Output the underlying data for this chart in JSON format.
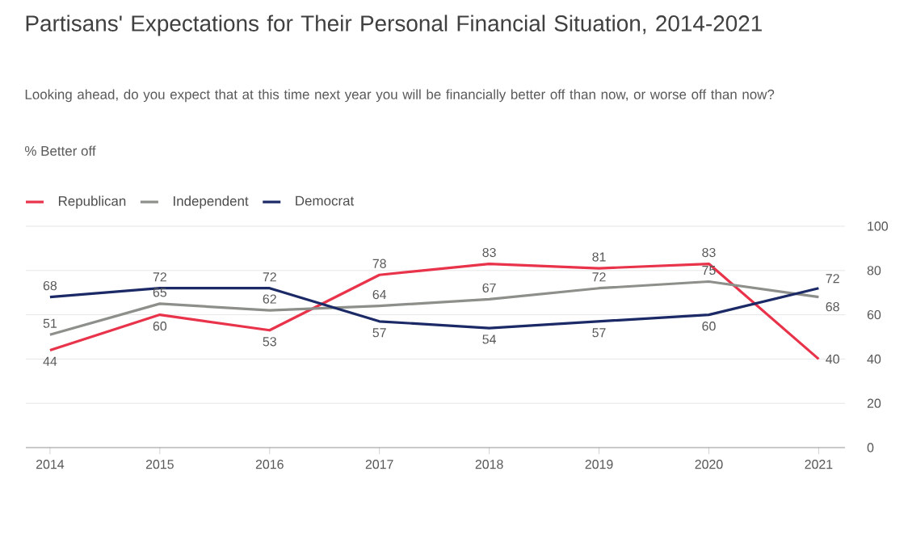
{
  "chart_data": {
    "type": "line",
    "title": "Partisans' Expectations for Their Personal Financial Situation, 2014-2021",
    "subtitle": "Looking ahead, do you expect that at this time next year you will be financially better off than now, or worse off than now?",
    "ylabel": "% Better off",
    "categories": [
      "2014",
      "2015",
      "2016",
      "2017",
      "2018",
      "2019",
      "2020",
      "2021"
    ],
    "series": [
      {
        "name": "Republican",
        "color": "#e8334a",
        "values": [
          44,
          60,
          53,
          78,
          83,
          81,
          83,
          40
        ]
      },
      {
        "name": "Independent",
        "color": "#8c8f8a",
        "values": [
          51,
          65,
          62,
          64,
          67,
          72,
          75,
          68
        ]
      },
      {
        "name": "Democrat",
        "color": "#1b2a66",
        "values": [
          68,
          72,
          72,
          57,
          54,
          57,
          60,
          72
        ]
      }
    ],
    "ylim": [
      0,
      100
    ],
    "yticks": [
      0,
      20,
      40,
      60,
      80,
      100
    ],
    "grid": "y",
    "legend": "top left",
    "data_labels": true,
    "marker": "none",
    "line_style": "solid"
  }
}
